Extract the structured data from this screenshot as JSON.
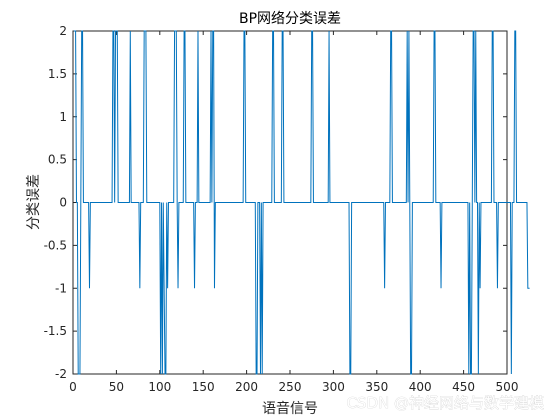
{
  "watermark": "CSDN @神经网络与数学建模",
  "chart_data": {
    "type": "line",
    "title": "BP网络分类误差",
    "xlabel": "语音信号",
    "ylabel": "分类误差",
    "xlim": [
      0,
      500
    ],
    "ylim": [
      -2,
      2
    ],
    "xticks": [
      0,
      50,
      100,
      150,
      200,
      250,
      300,
      350,
      400,
      450,
      500
    ],
    "yticks": [
      -2,
      -1.5,
      -1,
      -0.5,
      0,
      0.5,
      1,
      1.5,
      2
    ],
    "grid": false,
    "line_color": "#0072BD",
    "series": [
      {
        "values": [
          2,
          2,
          2,
          0,
          0,
          -2,
          -2,
          -2,
          0,
          2,
          2,
          0,
          0,
          0,
          0,
          0,
          0,
          0,
          -1,
          0,
          0,
          0,
          0,
          0,
          0,
          0,
          0,
          0,
          0,
          0,
          0,
          0,
          0,
          0,
          0,
          0,
          0,
          0,
          0,
          0,
          0,
          0,
          0,
          0,
          0,
          2,
          2,
          0,
          2,
          2,
          2,
          0,
          0,
          0,
          0,
          0,
          0,
          0,
          0,
          0,
          0,
          0,
          0,
          0,
          0,
          2,
          0,
          0,
          0,
          0,
          0,
          0,
          0,
          0,
          0,
          0,
          -1,
          0,
          0,
          0,
          0,
          2,
          2,
          2,
          0,
          0,
          0,
          0,
          0,
          0,
          0,
          0,
          0,
          0,
          0,
          0,
          0,
          0,
          0,
          0,
          -2,
          0,
          -2,
          0,
          -1,
          -2,
          -2,
          0,
          -1,
          0,
          0,
          0,
          0,
          0,
          0,
          0,
          2,
          2,
          2,
          0,
          -1,
          0,
          0,
          0,
          0,
          0,
          0,
          2,
          2,
          0,
          0,
          0,
          0,
          0,
          0,
          0,
          0,
          0,
          0,
          -1,
          0,
          0,
          0,
          2,
          0,
          0,
          0,
          0,
          0,
          0,
          0,
          0,
          0,
          0,
          0,
          0,
          0,
          0,
          2,
          0,
          2,
          2,
          -1,
          0,
          0,
          0,
          0,
          0,
          0,
          0,
          0,
          0,
          0,
          0,
          0,
          0,
          0,
          0,
          0,
          0,
          0,
          0,
          0,
          0,
          0,
          0,
          0,
          0,
          0,
          0,
          0,
          0,
          0,
          0,
          0,
          0,
          2,
          2,
          0,
          0,
          0,
          0,
          0,
          0,
          0,
          0,
          0,
          0,
          0,
          0,
          -2,
          -2,
          0,
          0,
          0,
          -2,
          0,
          -2,
          0,
          0,
          0,
          0,
          0,
          0,
          0,
          0,
          0,
          0,
          0,
          2,
          2,
          0,
          0,
          0,
          0,
          0,
          0,
          0,
          0,
          0,
          2,
          2,
          0,
          0,
          0,
          0,
          0,
          0,
          0,
          0,
          0,
          0,
          0,
          0,
          0,
          0,
          0,
          0,
          0,
          0,
          0,
          0,
          0,
          0,
          0,
          0,
          0,
          0,
          0,
          0,
          0,
          0,
          0,
          0,
          2,
          2,
          0,
          0,
          0,
          0,
          0,
          0,
          0,
          0,
          0,
          0,
          0,
          0,
          0,
          0,
          0,
          0,
          0,
          0,
          2,
          0,
          0,
          0,
          0,
          0,
          0,
          0,
          0,
          0,
          0,
          0,
          0,
          0,
          0,
          0,
          0,
          0,
          0,
          0,
          0,
          0,
          0,
          0,
          -2,
          -2,
          0,
          0,
          0,
          0,
          0,
          0,
          0,
          0,
          0,
          0,
          0,
          0,
          0,
          0,
          0,
          0,
          0,
          0,
          0,
          0,
          0,
          0,
          0,
          0,
          0,
          0,
          0,
          0,
          0,
          0,
          0,
          0,
          0,
          0,
          0,
          0,
          0,
          0,
          -1,
          0,
          0,
          0,
          0,
          0,
          0,
          2,
          2,
          0,
          0,
          0,
          0,
          0,
          0,
          0,
          0,
          0,
          0,
          0,
          0,
          0,
          0,
          0,
          0,
          0,
          2,
          0,
          2,
          0,
          -2,
          -2,
          0,
          0,
          0,
          0,
          0,
          0,
          0,
          0,
          0,
          0,
          0,
          0,
          0,
          0,
          0,
          0,
          0,
          0,
          0,
          0,
          0,
          0,
          0,
          0,
          0,
          2,
          2,
          0,
          0,
          0,
          0,
          0,
          0,
          -1,
          0,
          0,
          0,
          0,
          0,
          0,
          0,
          0,
          0,
          0,
          0,
          0,
          0,
          0,
          0,
          0,
          0,
          0,
          0,
          0,
          0,
          0,
          0,
          0,
          0,
          0,
          0,
          0,
          0,
          0,
          0,
          -2,
          0,
          -2,
          -2,
          0,
          2,
          2,
          0,
          2,
          0,
          0,
          -2,
          0,
          -1,
          0,
          0,
          0,
          0,
          0,
          0,
          0,
          0,
          0,
          0,
          0,
          0,
          0,
          2,
          2,
          0,
          0,
          0,
          0,
          -1,
          0,
          0,
          0,
          0,
          0,
          0,
          0,
          0,
          0,
          0,
          0,
          0,
          0,
          0,
          0,
          -2,
          0,
          0,
          0,
          2,
          2,
          0,
          0,
          0,
          0,
          0,
          0,
          0,
          0,
          0,
          0,
          0,
          0,
          0,
          -1,
          -1,
          -1
        ]
      }
    ]
  }
}
